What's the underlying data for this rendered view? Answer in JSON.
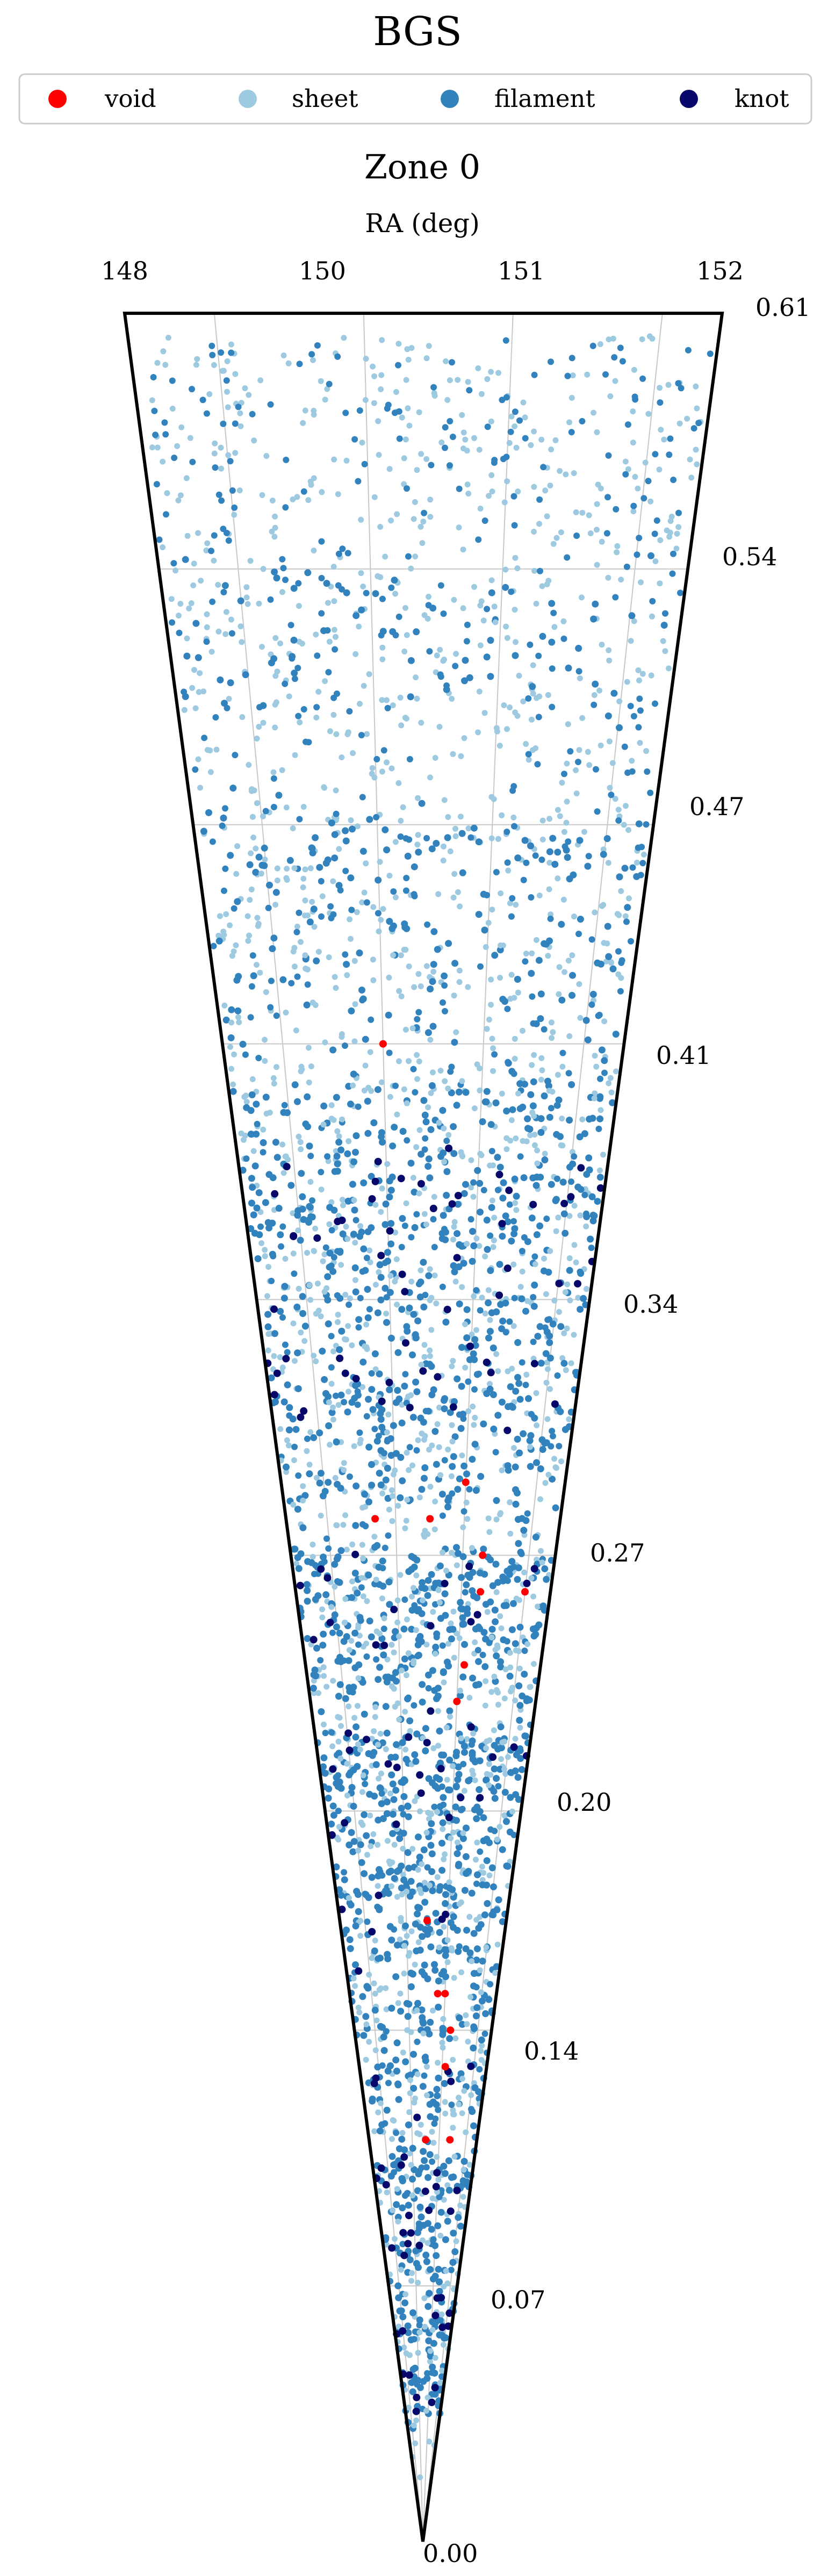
{
  "chart_data": {
    "type": "scatter",
    "title": "BGS",
    "subtitle": "Zone 0",
    "xlabel": "RA (deg)",
    "ylabel": "",
    "x_ticks": [
      "148",
      "150",
      "151",
      "152"
    ],
    "r_ticks": [
      "0.61",
      "0.54",
      "0.47",
      "0.41",
      "0.34",
      "0.27",
      "0.20",
      "0.14",
      "0.07",
      "0.00"
    ],
    "xlim": [
      148,
      152
    ],
    "rlim": [
      0.0,
      0.61
    ],
    "grid": true,
    "legend_position": "top",
    "series": [
      {
        "name": "void",
        "color": "#ff0000"
      },
      {
        "name": "sheet",
        "color": "#9ecae1"
      },
      {
        "name": "filament",
        "color": "#3182bd"
      },
      {
        "name": "knot",
        "color": "#08086b"
      }
    ],
    "highlights": {
      "void_points": [
        [
          149.6,
          0.41
        ],
        [
          150.6,
          0.29
        ],
        [
          150.1,
          0.28
        ],
        [
          149.3,
          0.28
        ],
        [
          150.9,
          0.27
        ],
        [
          150.9,
          0.26
        ],
        [
          151.6,
          0.26
        ],
        [
          150.7,
          0.24
        ],
        [
          150.6,
          0.23
        ],
        [
          150.1,
          0.17
        ],
        [
          150.6,
          0.15
        ],
        [
          150.4,
          0.15
        ],
        [
          150.8,
          0.14
        ],
        [
          150.7,
          0.13
        ],
        [
          151.0,
          0.11
        ],
        [
          150.1,
          0.11
        ]
      ],
      "filament_bands": [
        {
          "r": 0.52,
          "spread": 0.012,
          "n": 60
        },
        {
          "r": 0.465,
          "spread": 0.006,
          "n": 60
        },
        {
          "r": 0.43,
          "spread": 0.012,
          "n": 80
        },
        {
          "r": 0.395,
          "spread": 0.006,
          "n": 70
        },
        {
          "r": 0.375,
          "spread": 0.01,
          "n": 110
        },
        {
          "r": 0.355,
          "spread": 0.01,
          "n": 110
        },
        {
          "r": 0.33,
          "spread": 0.01,
          "n": 90
        },
        {
          "r": 0.31,
          "spread": 0.008,
          "n": 90
        },
        {
          "r": 0.29,
          "spread": 0.006,
          "n": 70
        },
        {
          "r": 0.265,
          "spread": 0.005,
          "n": 100
        },
        {
          "r": 0.25,
          "spread": 0.005,
          "n": 90
        },
        {
          "r": 0.235,
          "spread": 0.004,
          "n": 60
        },
        {
          "r": 0.215,
          "spread": 0.006,
          "n": 120
        },
        {
          "r": 0.2,
          "spread": 0.005,
          "n": 80
        },
        {
          "r": 0.18,
          "spread": 0.006,
          "n": 80
        },
        {
          "r": 0.165,
          "spread": 0.006,
          "n": 80
        },
        {
          "r": 0.145,
          "spread": 0.004,
          "n": 50
        },
        {
          "r": 0.125,
          "spread": 0.004,
          "n": 50
        },
        {
          "r": 0.1,
          "spread": 0.006,
          "n": 60
        },
        {
          "r": 0.08,
          "spread": 0.006,
          "n": 40
        },
        {
          "r": 0.06,
          "spread": 0.006,
          "n": 40
        },
        {
          "r": 0.04,
          "spread": 0.006,
          "n": 30
        }
      ],
      "knot_clusters": [
        {
          "r": 0.37,
          "n": 15
        },
        {
          "r": 0.36,
          "n": 12
        },
        {
          "r": 0.345,
          "n": 10
        },
        {
          "r": 0.325,
          "n": 10
        },
        {
          "r": 0.315,
          "n": 12
        },
        {
          "r": 0.265,
          "n": 8
        },
        {
          "r": 0.25,
          "n": 8
        },
        {
          "r": 0.215,
          "n": 14
        },
        {
          "r": 0.2,
          "n": 8
        },
        {
          "r": 0.17,
          "n": 6
        },
        {
          "r": 0.125,
          "n": 6
        },
        {
          "r": 0.1,
          "n": 10
        },
        {
          "r": 0.085,
          "n": 8
        },
        {
          "r": 0.06,
          "n": 8
        },
        {
          "r": 0.04,
          "n": 6
        }
      ]
    }
  }
}
